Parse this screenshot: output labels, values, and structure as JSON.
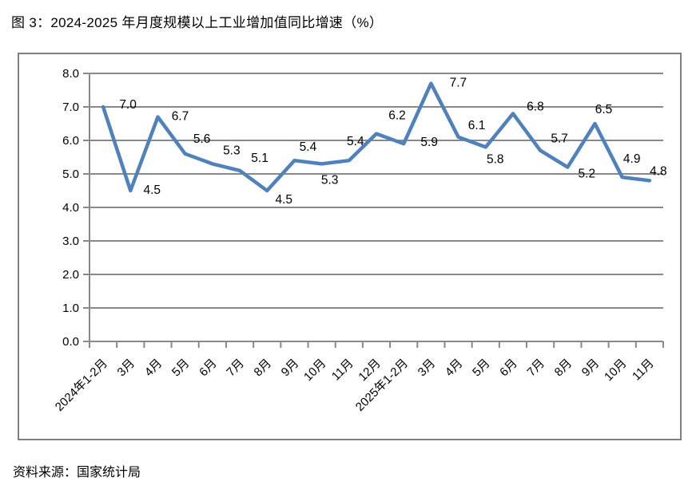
{
  "title": "图 3：2024-2025 年月度规模以上工业增加值同比增速（%）",
  "source": "资料来源：国家统计局",
  "chart_data": {
    "type": "line",
    "title": "图 3：2024-2025 年月度规模以上工业增加值同比增速（%）",
    "categories": [
      "2024年1-2月",
      "3月",
      "4月",
      "5月",
      "6月",
      "7月",
      "8月",
      "9月",
      "10月",
      "11月",
      "12月",
      "2025年1-2月",
      "3月",
      "4月",
      "5月",
      "6月",
      "7月",
      "8月",
      "9月",
      "10月",
      "11月"
    ],
    "values": [
      7.0,
      4.5,
      6.7,
      5.6,
      5.3,
      5.1,
      4.5,
      5.4,
      5.3,
      5.4,
      6.2,
      5.9,
      7.7,
      6.1,
      5.8,
      6.8,
      5.7,
      5.2,
      6.5,
      4.9,
      4.8
    ],
    "data_labels": [
      "7.0",
      "4.5",
      "6.7",
      "5.6",
      "5.3",
      "5.1",
      "4.5",
      "5.4",
      "5.3",
      "5.4",
      "6.2",
      "5.9",
      "7.7",
      "6.1",
      "5.8",
      "6.8",
      "5.7",
      "5.2",
      "6.5",
      "4.9",
      "4.8"
    ],
    "xlabel": "",
    "ylabel": "",
    "ylim": [
      0,
      8
    ],
    "ytick_step": 1.0,
    "ytick_labels": [
      "0.0",
      "1.0",
      "2.0",
      "3.0",
      "4.0",
      "5.0",
      "6.0",
      "7.0",
      "8.0"
    ],
    "grid": true,
    "legend": "none",
    "line_color": "#4F81BD",
    "grid_color": "#898989",
    "axis_color": "#898989",
    "frame_color": "#808080",
    "text_color": "#000000"
  }
}
